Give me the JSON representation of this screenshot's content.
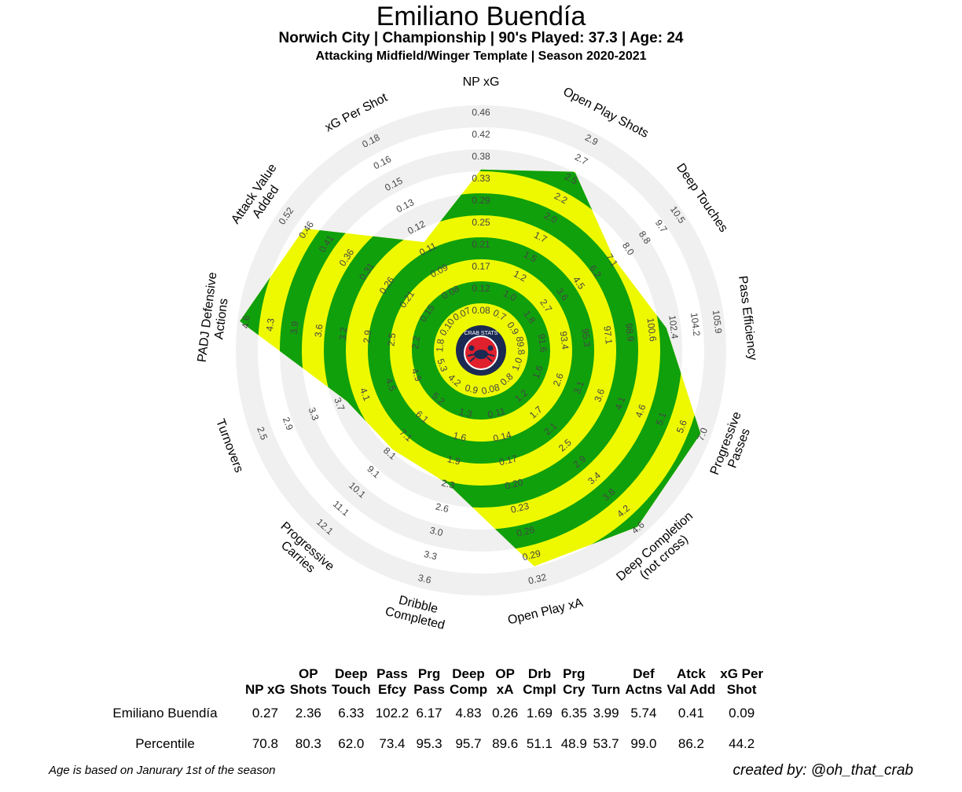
{
  "header": {
    "title": "Emiliano Buendía",
    "subtitle": "Norwich City  | Championship | 90's Played: 37.3 | Age: 24",
    "subtitle2": "Attacking Midfield/Winger Template | Season 2020-2021"
  },
  "badge": {
    "text": "CRAB STATS",
    "icon": "crab-icon"
  },
  "colors": {
    "ring_light": "#f0f0f0",
    "band_yellow": "#eef900",
    "band_green": "#10a00c",
    "badge_navy": "#1b2a52",
    "badge_red": "#e0202c",
    "tick_text": "#444444"
  },
  "chart_data": {
    "type": "radar",
    "title": "Emiliano Buendía",
    "rings": 10,
    "axes": [
      {
        "label": "NP xG",
        "ticks": [
          "0.08",
          "0.12",
          "0.17",
          "0.21",
          "0.25",
          "0.29",
          "0.33",
          "0.38",
          "0.42",
          "0.46"
        ],
        "percentile": 70.8
      },
      {
        "label": "Open Play Shots",
        "ticks": [
          "0.7",
          "1.0",
          "1.2",
          "1.5",
          "1.7",
          "2.0",
          "2.2",
          "2.5",
          "2.7",
          "2.9"
        ],
        "percentile": 80.3
      },
      {
        "label": "Deep Touches",
        "ticks": [
          "0.9",
          "1.8",
          "2.7",
          "3.6",
          "4.5",
          "6.2",
          "7.1",
          "8.0",
          "8.8",
          "9.7",
          "10.5"
        ],
        "percentile": 62.0
      },
      {
        "label": "Pass Efficiency",
        "ticks": [
          "89.8",
          "91.6",
          "93.4",
          "95.3",
          "97.1",
          "98.9",
          "100.6",
          "102.4",
          "104.2",
          "105.9"
        ],
        "percentile": 73.4
      },
      {
        "label": "Progressive\nPasses",
        "ticks": [
          "1.0",
          "1.6",
          "2.6",
          "3.1",
          "3.6",
          "4.1",
          "4.6",
          "5.1",
          "5.6",
          "7.0"
        ],
        "percentile": 95.3
      },
      {
        "label": "Deep Completion\n(not cross)",
        "ticks": [
          "0.8",
          "1.2",
          "1.7",
          "2.1",
          "2.5",
          "2.9",
          "3.4",
          "3.8",
          "4.2",
          "4.6"
        ],
        "percentile": 95.7
      },
      {
        "label": "Open Play xA",
        "ticks": [
          "0.08",
          "0.11",
          "0.14",
          "0.17",
          "0.20",
          "0.23",
          "0.26",
          "0.29",
          "0.32"
        ],
        "percentile": 89.6
      },
      {
        "label": "Dribble\nCompleted",
        "ticks": [
          "0.9",
          "1.3",
          "1.6",
          "1.9",
          "2.3",
          "2.6",
          "3.0",
          "3.3",
          "3.6"
        ],
        "percentile": 51.1
      },
      {
        "label": "Progressive\nCarries",
        "ticks": [
          "4.2",
          "5.2",
          "6.1",
          "7.1",
          "8.1",
          "9.1",
          "10.1",
          "11.1",
          "12.1"
        ],
        "percentile": 48.9
      },
      {
        "label": "Turnovers",
        "ticks": [
          "5.3",
          "4.9",
          "4.5",
          "4.1",
          "3.7",
          "3.3",
          "2.9",
          "2.5"
        ],
        "percentile": 53.7
      },
      {
        "label": "PADJ Defensive\nActions",
        "ticks": [
          "1.8",
          "2.2",
          "2.5",
          "2.9",
          "3.2",
          "3.6",
          "3.9",
          "4.3",
          "4.6"
        ],
        "percentile": 99.0
      },
      {
        "label": "Attack Value\nAdded",
        "ticks": [
          "0.10",
          "0.15",
          "0.21",
          "0.26",
          "0.31",
          "0.36",
          "0.41",
          "0.46",
          "0.52"
        ],
        "percentile": 86.2
      },
      {
        "label": "xG Per Shot",
        "ticks": [
          "0.07",
          "0.08",
          "0.09",
          "0.11",
          "0.12",
          "0.13",
          "0.15",
          "0.16",
          "0.18"
        ],
        "percentile": 44.2
      }
    ]
  },
  "table": {
    "headers": [
      [
        "NP xG"
      ],
      [
        "OP",
        "Shots"
      ],
      [
        "Deep",
        "Touch"
      ],
      [
        "Pass",
        "Efcy"
      ],
      [
        "Prg",
        "Pass"
      ],
      [
        "Deep",
        "Comp"
      ],
      [
        "OP",
        "xA"
      ],
      [
        "Drb",
        "Cmpl"
      ],
      [
        "Prg",
        "Cry"
      ],
      [
        "Turn"
      ],
      [
        "Def",
        "Actns"
      ],
      [
        "Atck",
        "Val Add"
      ],
      [
        "xG Per",
        "Shot"
      ]
    ],
    "rows": [
      {
        "label": "Emiliano Buendía",
        "values": [
          "0.27",
          "2.36",
          "6.33",
          "102.2",
          "6.17",
          "4.83",
          "0.26",
          "1.69",
          "6.35",
          "3.99",
          "5.74",
          "0.41",
          "0.09"
        ]
      },
      {
        "label": "Percentile",
        "values": [
          "70.8",
          "80.3",
          "62.0",
          "73.4",
          "95.3",
          "95.7",
          "89.6",
          "51.1",
          "48.9",
          "53.7",
          "99.0",
          "86.2",
          "44.2"
        ]
      }
    ]
  },
  "footer": {
    "note": "Age is based on Janurary 1st of the season",
    "credit": "created by: @oh_that_crab"
  }
}
